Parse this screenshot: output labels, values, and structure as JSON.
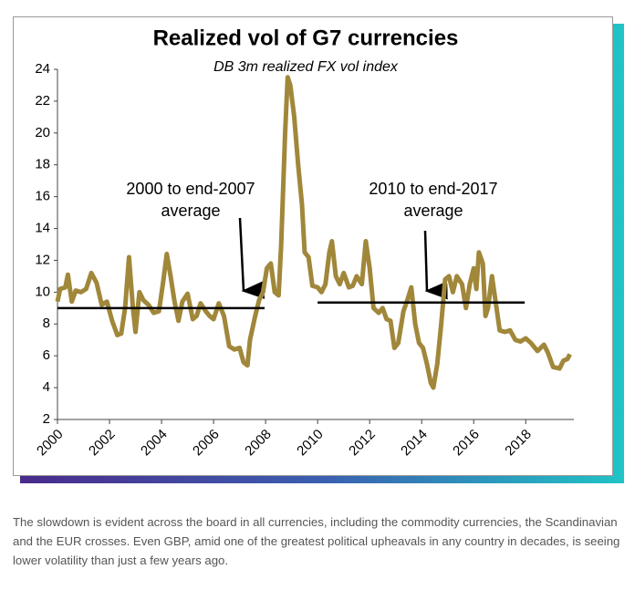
{
  "chart_data": {
    "type": "line",
    "title": "Realized vol of G7 currencies",
    "subtitle": "DB 3m realized FX vol index",
    "xlim": [
      2000,
      2019.85
    ],
    "xticks": [
      2000,
      2002,
      2004,
      2006,
      2008,
      2010,
      2012,
      2014,
      2016,
      2018
    ],
    "ylim": [
      2,
      24
    ],
    "yticks": [
      2,
      4,
      6,
      8,
      10,
      12,
      14,
      16,
      18,
      20,
      22,
      24
    ],
    "grid": false,
    "series": [
      {
        "color": "#a0873a",
        "x": [
          2000.0,
          2000.1,
          2000.3,
          2000.4,
          2000.55,
          2000.7,
          2000.9,
          2001.1,
          2001.3,
          2001.5,
          2001.7,
          2001.9,
          2002.1,
          2002.3,
          2002.45,
          2002.6,
          2002.75,
          2002.9,
          2003.0,
          2003.15,
          2003.3,
          2003.5,
          2003.7,
          2003.9,
          2004.05,
          2004.2,
          2004.35,
          2004.5,
          2004.65,
          2004.8,
          2005.0,
          2005.2,
          2005.35,
          2005.5,
          2005.7,
          2005.85,
          2006.0,
          2006.2,
          2006.4,
          2006.6,
          2006.8,
          2007.0,
          2007.15,
          2007.3,
          2007.4,
          2007.6,
          2007.75,
          2007.9,
          2008.05,
          2008.2,
          2008.35,
          2008.5,
          2008.6,
          2008.75,
          2008.85,
          2008.95,
          2009.1,
          2009.25,
          2009.4,
          2009.5,
          2009.65,
          2009.8,
          2010.0,
          2010.15,
          2010.3,
          2010.45,
          2010.55,
          2010.7,
          2010.85,
          2011.0,
          2011.2,
          2011.35,
          2011.5,
          2011.7,
          2011.85,
          2012.0,
          2012.15,
          2012.35,
          2012.5,
          2012.65,
          2012.8,
          2012.95,
          2013.1,
          2013.3,
          2013.45,
          2013.6,
          2013.75,
          2013.9,
          2014.05,
          2014.2,
          2014.35,
          2014.45,
          2014.6,
          2014.75,
          2014.9,
          2015.05,
          2015.2,
          2015.35,
          2015.55,
          2015.7,
          2015.85,
          2016.0,
          2016.1,
          2016.2,
          2016.35,
          2016.45,
          2016.55,
          2016.7,
          2016.85,
          2017.0,
          2017.2,
          2017.4,
          2017.6,
          2017.8,
          2018.0,
          2018.2,
          2018.45,
          2018.7,
          2018.85,
          2019.05,
          2019.3,
          2019.45,
          2019.6,
          2019.7
        ],
        "values": [
          9.4,
          10.2,
          10.3,
          11.1,
          9.4,
          10.1,
          10.0,
          10.2,
          11.2,
          10.6,
          9.2,
          9.4,
          8.2,
          7.3,
          7.4,
          9.0,
          12.2,
          9.0,
          7.5,
          10.0,
          9.5,
          9.2,
          8.7,
          8.8,
          10.5,
          12.4,
          11.0,
          9.4,
          8.2,
          9.4,
          9.9,
          8.3,
          8.5,
          9.3,
          8.8,
          8.5,
          8.3,
          9.3,
          8.5,
          6.6,
          6.4,
          6.5,
          5.6,
          5.4,
          7.0,
          8.5,
          9.5,
          10.0,
          11.5,
          11.8,
          10.0,
          9.8,
          13.0,
          20.0,
          23.5,
          23.0,
          21.0,
          18.0,
          15.5,
          12.5,
          12.2,
          10.4,
          10.3,
          10.0,
          10.5,
          12.5,
          13.2,
          11.0,
          10.5,
          11.2,
          10.3,
          10.4,
          11.0,
          10.5,
          13.2,
          11.5,
          9.0,
          8.7,
          9.0,
          8.3,
          8.2,
          6.5,
          6.8,
          8.8,
          9.5,
          10.3,
          8.0,
          6.8,
          6.5,
          5.5,
          4.3,
          4.0,
          5.5,
          8.0,
          10.8,
          11.0,
          10.0,
          11.0,
          10.5,
          9.0,
          10.5,
          11.5,
          10.2,
          12.5,
          11.8,
          8.5,
          9.0,
          11.0,
          9.3,
          7.6,
          7.5,
          7.6,
          7.0,
          6.9,
          7.1,
          6.8,
          6.3,
          6.7,
          6.2,
          5.3,
          5.2,
          5.7,
          5.8,
          6.1
        ]
      }
    ],
    "averages": [
      {
        "x": [
          2000,
          2007.96
        ],
        "value": 9.0,
        "label": [
          "2000 to end-2007",
          "average"
        ]
      },
      {
        "x": [
          2010,
          2017.96
        ],
        "value": 9.35,
        "label": [
          "2010 to end-2017",
          "average"
        ]
      }
    ]
  },
  "caption": "The slowdown is evident across the board in all currencies, including the commodity currencies, the Scandinavian and the EUR crosses. Even GBP, amid one of the greatest political upheavals in any country in decades, is seeing lower volatility than just a few years ago."
}
